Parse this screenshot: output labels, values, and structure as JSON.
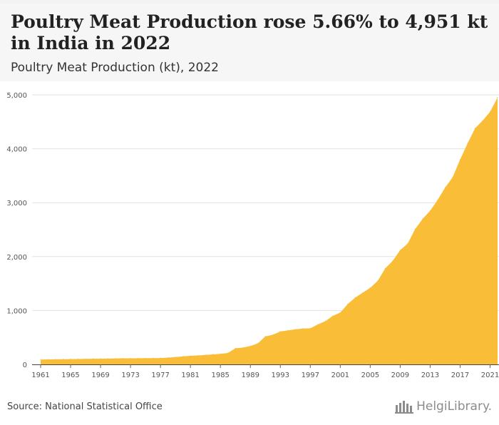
{
  "header": {
    "title": "Poultry Meat Production rose 5.66% to 4,951 kt in India in 2022",
    "subtitle": "Poultry Meat Production (kt), 2022"
  },
  "footer": {
    "source": "Source: National Statistical Office",
    "brand": "HelgiLibrary."
  },
  "colors": {
    "area_fill": "#f9bd38",
    "grid": "#e2e2e2",
    "header_bg": "#f6f6f6",
    "plot_bg": "#ffffff"
  },
  "chart_data": {
    "type": "area",
    "title": "Poultry Meat Production rose 5.66% to 4,951 kt in India in 2022",
    "subtitle": "Poultry Meat Production (kt), 2022",
    "xlabel": "",
    "ylabel": "",
    "ylim": [
      0,
      5000
    ],
    "xlim": [
      1961,
      2022
    ],
    "grid": true,
    "legend": "none",
    "yticks": [
      0,
      1000,
      2000,
      3000,
      4000,
      5000
    ],
    "ytick_labels": [
      "0",
      "1,000",
      "2,000",
      "3,000",
      "4,000",
      "5,000"
    ],
    "xticks": [
      1961,
      1965,
      1969,
      1973,
      1977,
      1981,
      1985,
      1989,
      1993,
      1997,
      2001,
      2005,
      2009,
      2013,
      2017,
      2021
    ],
    "xtick_labels": [
      "1961",
      "1965",
      "1969",
      "1973",
      "1977",
      "1981",
      "1985",
      "1989",
      "1993",
      "1997",
      "2001",
      "2005",
      "2009",
      "2013",
      "2017",
      "2021"
    ],
    "x": [
      1961,
      1962,
      1963,
      1964,
      1965,
      1966,
      1967,
      1968,
      1969,
      1970,
      1971,
      1972,
      1973,
      1974,
      1975,
      1976,
      1977,
      1978,
      1979,
      1980,
      1981,
      1982,
      1983,
      1984,
      1985,
      1986,
      1987,
      1988,
      1989,
      1990,
      1991,
      1992,
      1993,
      1994,
      1995,
      1996,
      1997,
      1998,
      1999,
      2000,
      2001,
      2002,
      2003,
      2004,
      2005,
      2006,
      2007,
      2008,
      2009,
      2010,
      2011,
      2012,
      2013,
      2014,
      2015,
      2016,
      2017,
      2018,
      2019,
      2020,
      2021,
      2022
    ],
    "values": [
      90,
      92,
      94,
      96,
      98,
      100,
      102,
      104,
      106,
      108,
      110,
      112,
      113,
      114,
      115,
      116,
      117,
      125,
      135,
      148,
      158,
      165,
      175,
      185,
      195,
      212,
      300,
      310,
      340,
      390,
      520,
      550,
      610,
      630,
      650,
      665,
      670,
      740,
      800,
      900,
      960,
      1120,
      1240,
      1330,
      1420,
      1550,
      1780,
      1920,
      2120,
      2240,
      2510,
      2700,
      2850,
      3050,
      3280,
      3470,
      3800,
      4100,
      4380,
      4520,
      4686,
      4951
    ]
  }
}
